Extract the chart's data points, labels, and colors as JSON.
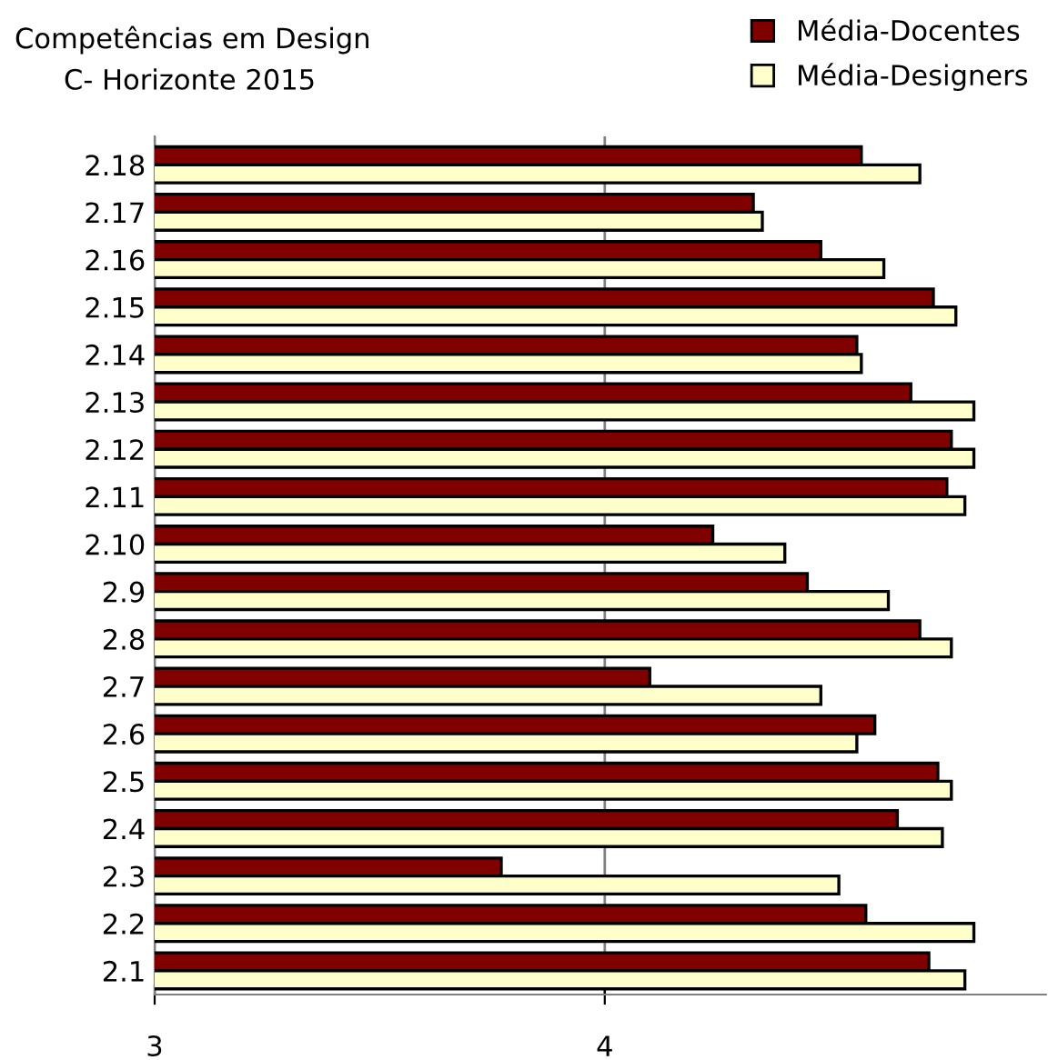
{
  "chart_data": {
    "type": "bar",
    "orientation": "horizontal",
    "title": "Competências em Design",
    "subtitle": "C- Horizonte 2015",
    "categories": [
      "2.18",
      "2.17",
      "2.16",
      "2.15",
      "2.14",
      "2.13",
      "2.12",
      "2.11",
      "2.10",
      "2.9",
      "2.8",
      "2.7",
      "2.6",
      "2.5",
      "2.4",
      "2.3",
      "2.2",
      "2.1"
    ],
    "series": [
      {
        "name": "Média-Docentes",
        "color": "#800000",
        "values": [
          4.57,
          4.33,
          4.48,
          4.73,
          4.56,
          4.68,
          4.77,
          4.76,
          4.24,
          4.45,
          4.7,
          4.1,
          4.6,
          4.74,
          4.65,
          3.77,
          4.58,
          4.72
        ]
      },
      {
        "name": "Média-Designers",
        "color": "#ffffcc",
        "values": [
          4.7,
          4.35,
          4.62,
          4.78,
          4.57,
          4.82,
          4.82,
          4.8,
          4.4,
          4.63,
          4.77,
          4.48,
          4.56,
          4.77,
          4.75,
          4.52,
          4.82,
          4.8
        ]
      }
    ],
    "xlim": [
      3,
      4.98
    ],
    "xticks": [
      3,
      4
    ],
    "grid": "x",
    "legend": "top right"
  }
}
